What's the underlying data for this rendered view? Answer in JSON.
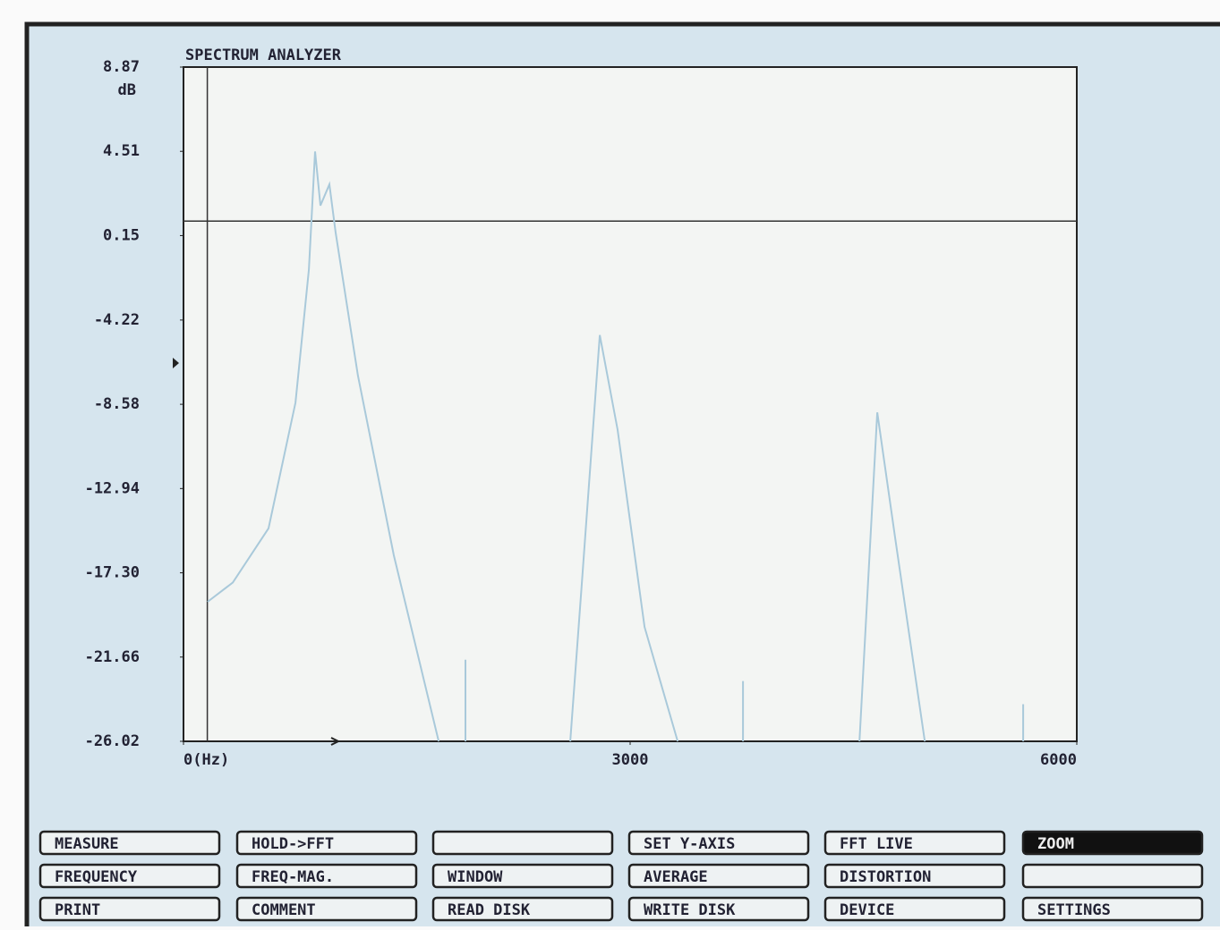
{
  "chart_data": {
    "type": "line",
    "title": "SPECTRUM ANALYZER",
    "y_label": "dB",
    "xlim": [
      0,
      6000
    ],
    "ylim": [
      -26.02,
      8.87
    ],
    "xticks": [
      {
        "value": 0,
        "label": "0(Hz)"
      },
      3000,
      6000
    ],
    "yticks": [
      8.87,
      4.51,
      0.15,
      -4.22,
      -8.58,
      -12.94,
      {
        "value": -17.3,
        "label": "-17.30"
      },
      -21.66,
      -26.02
    ],
    "hline": 0.9,
    "cursor_x": 160,
    "series": [
      {
        "color": "#a9c9da",
        "x": [
          162,
          331,
          571,
          752,
          842,
          884,
          920,
          980,
          1022,
          1172,
          1413,
          1714,
          1714,
          1894,
          1894,
          1894,
          1894,
          2598,
          2676,
          2796,
          2916,
          3097,
          3319,
          3319,
          3758,
          3758,
          3758,
          3758,
          4540,
          4660,
          4780,
          4979,
          4979,
          5640,
          5640,
          5640
        ],
        "values": [
          -18.8,
          -17.8,
          -15.0,
          -8.5,
          -1.6,
          4.5,
          1.7,
          2.8,
          0.3,
          -7.1,
          -16.4,
          -26.02,
          null,
          -26.02,
          -21.8,
          -26.02,
          null,
          -26.02,
          -17.8,
          -5.0,
          -9.9,
          -20.1,
          -26.02,
          null,
          -26.02,
          -22.9,
          -26.02,
          null,
          -26.02,
          -9.0,
          -15.5,
          -26.02,
          null,
          -26.02,
          -24.1,
          -26.02
        ]
      }
    ]
  },
  "buttons": [
    [
      "MEASURE",
      "HOLD->FFT",
      null,
      "SET Y-AXIS",
      "FFT LIVE",
      "ZOOM"
    ],
    [
      "FREQUENCY",
      "FREQ-MAG.",
      "WINDOW",
      "AVERAGE",
      "DISTORTION",
      null
    ],
    [
      "PRINT",
      "COMMENT",
      "READ DISK",
      "WRITE DISK",
      "DEVICE",
      "SETTINGS"
    ]
  ],
  "active_button": "ZOOM"
}
